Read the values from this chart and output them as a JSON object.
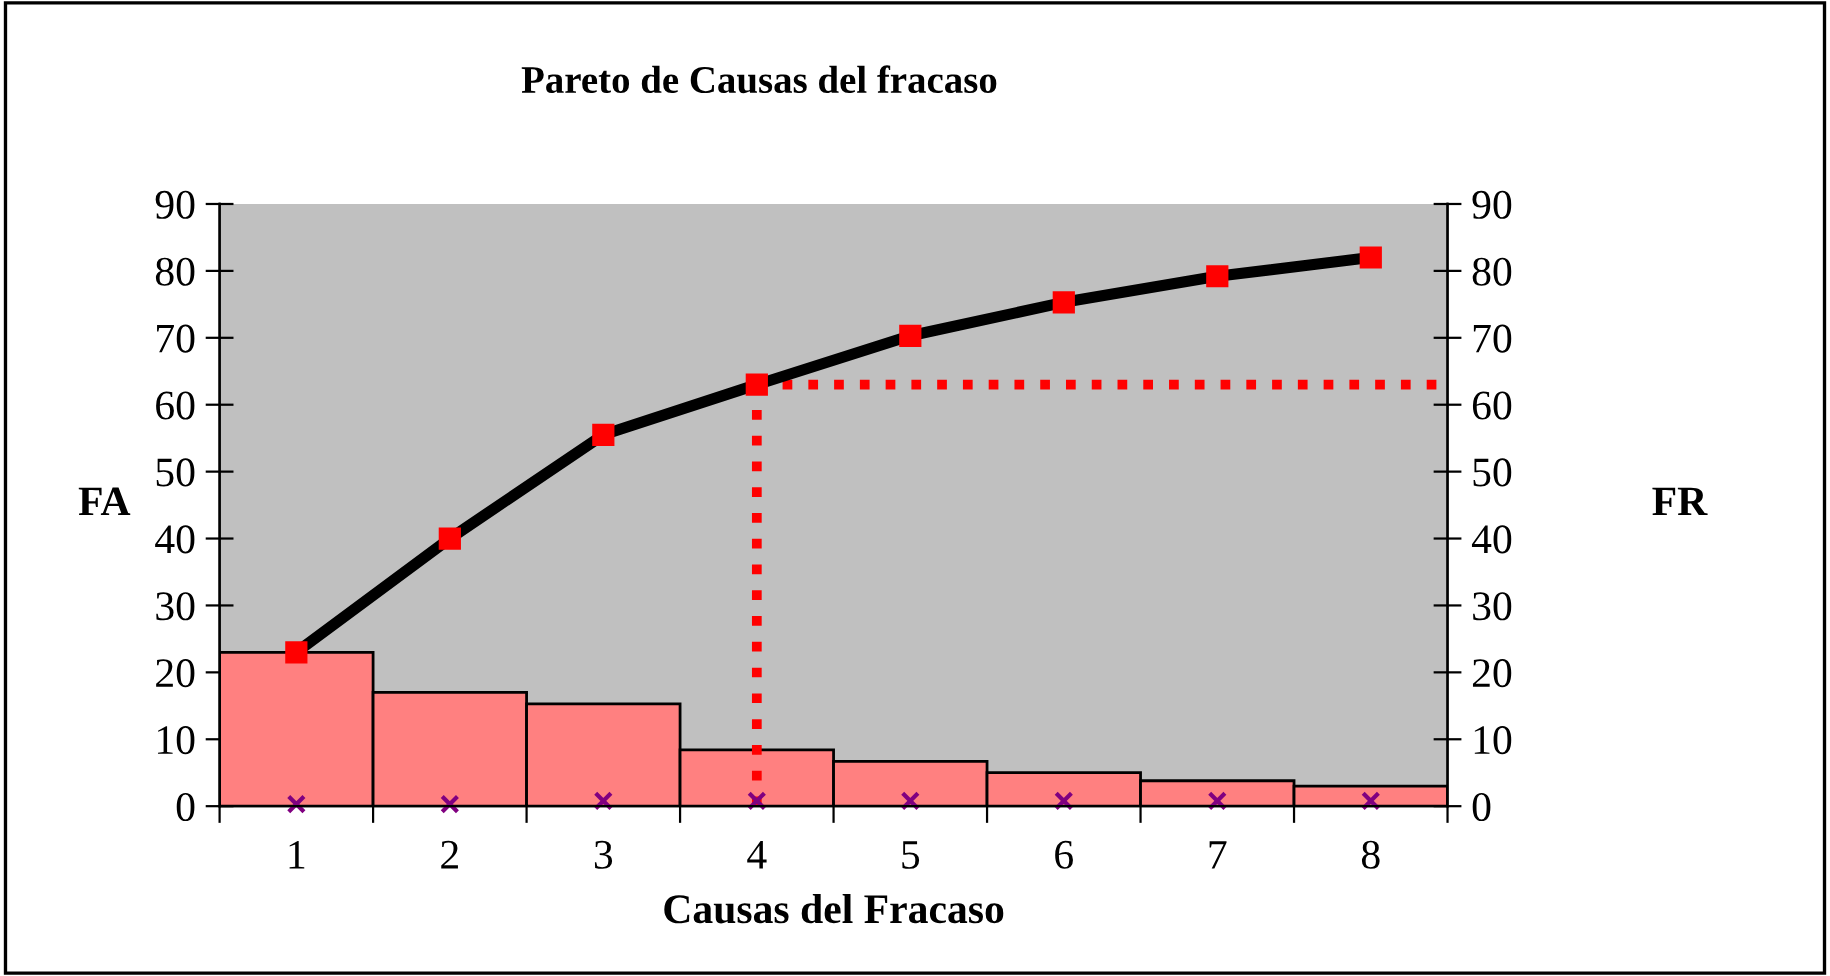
{
  "chart_data": {
    "type": "bar",
    "title": "Pareto de Causas del fracaso",
    "xlabel": "Causas del Fracaso",
    "ylabel": "FA",
    "y2label": "FR",
    "categories": [
      "1",
      "2",
      "3",
      "4",
      "5",
      "6",
      "7",
      "8"
    ],
    "series": [
      {
        "color": "#ff8080",
        "values": [
          23,
          17,
          15.3,
          8.4,
          6.7,
          5,
          3.8,
          3
        ]
      },
      {
        "type": "line",
        "axis": "y2",
        "color": "#000000",
        "values": [
          23,
          40,
          55.5,
          63,
          70.3,
          75.3,
          79.2,
          82
        ],
        "marker": "square"
      },
      {
        "type": "scatter",
        "color": "#800080",
        "values": [
          0.3,
          0.3,
          0.8,
          0.8,
          0.8,
          0.8,
          0.8,
          0.8
        ],
        "marker": "cross"
      }
    ],
    "ref_lines": [
      {
        "axis": "y2",
        "value": 63,
        "color": "#ff0000",
        "line_style": "dotted"
      },
      {
        "axis": "x",
        "value": "4",
        "color": "#ff0000",
        "line_style": "dotted"
      }
    ],
    "ylim": [
      0,
      90
    ],
    "yticks": [
      0,
      10,
      20,
      30,
      40,
      50,
      60,
      70,
      80,
      90
    ],
    "y2lim": [
      0,
      90
    ],
    "y2ticks": [
      0,
      10,
      20,
      30,
      40,
      50,
      60,
      70,
      80,
      90
    ],
    "grid": false,
    "legend": false
  }
}
